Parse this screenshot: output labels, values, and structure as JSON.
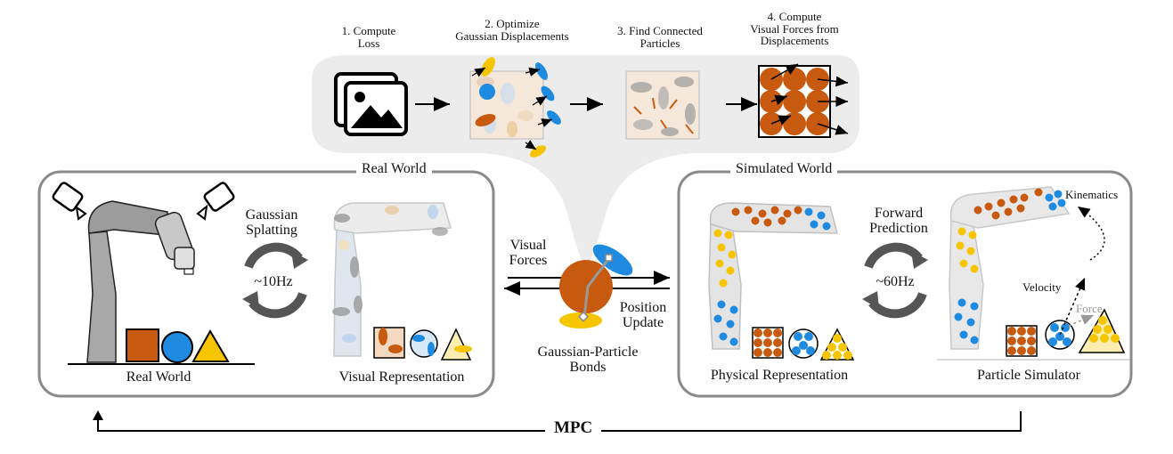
{
  "pipeline": {
    "steps": [
      {
        "label_line1": "1. Compute",
        "label_line2": "Loss"
      },
      {
        "label_line1": "2. Optimize",
        "label_line2": "Gaussian Displacements"
      },
      {
        "label_line1": "3. Find Connected",
        "label_line2": "Particles"
      },
      {
        "label_line1": "4. Compute",
        "label_line2": "Visual Forces from",
        "label_line3": "Displacements"
      }
    ]
  },
  "real_world": {
    "title": "Real World",
    "splatting_line1": "Gaussian",
    "splatting_line2": "Splatting",
    "rate": "~10Hz",
    "left_caption": "Real World",
    "right_caption": "Visual Representation"
  },
  "middle": {
    "visual_forces_line1": "Visual",
    "visual_forces_line2": "Forces",
    "position_update_line1": "Position",
    "position_update_line2": "Update",
    "bonds_line1": "Gaussian-Particle",
    "bonds_line2": "Bonds"
  },
  "simulated_world": {
    "title": "Simulated World",
    "forward_line1": "Forward",
    "forward_line2": "Prediction",
    "rate": "~60Hz",
    "kinematics": "Kinematics",
    "velocity": "Velocity",
    "force": "Force",
    "left_caption": "Physical Representation",
    "right_caption": "Particle Simulator"
  },
  "loop_label": "MPC",
  "colors": {
    "orange": "#c85a10",
    "blue": "#1e8ae0",
    "yellow": "#f6c500",
    "panel_border": "#8a8a8a",
    "robot_gray": "#9c9c9c"
  }
}
